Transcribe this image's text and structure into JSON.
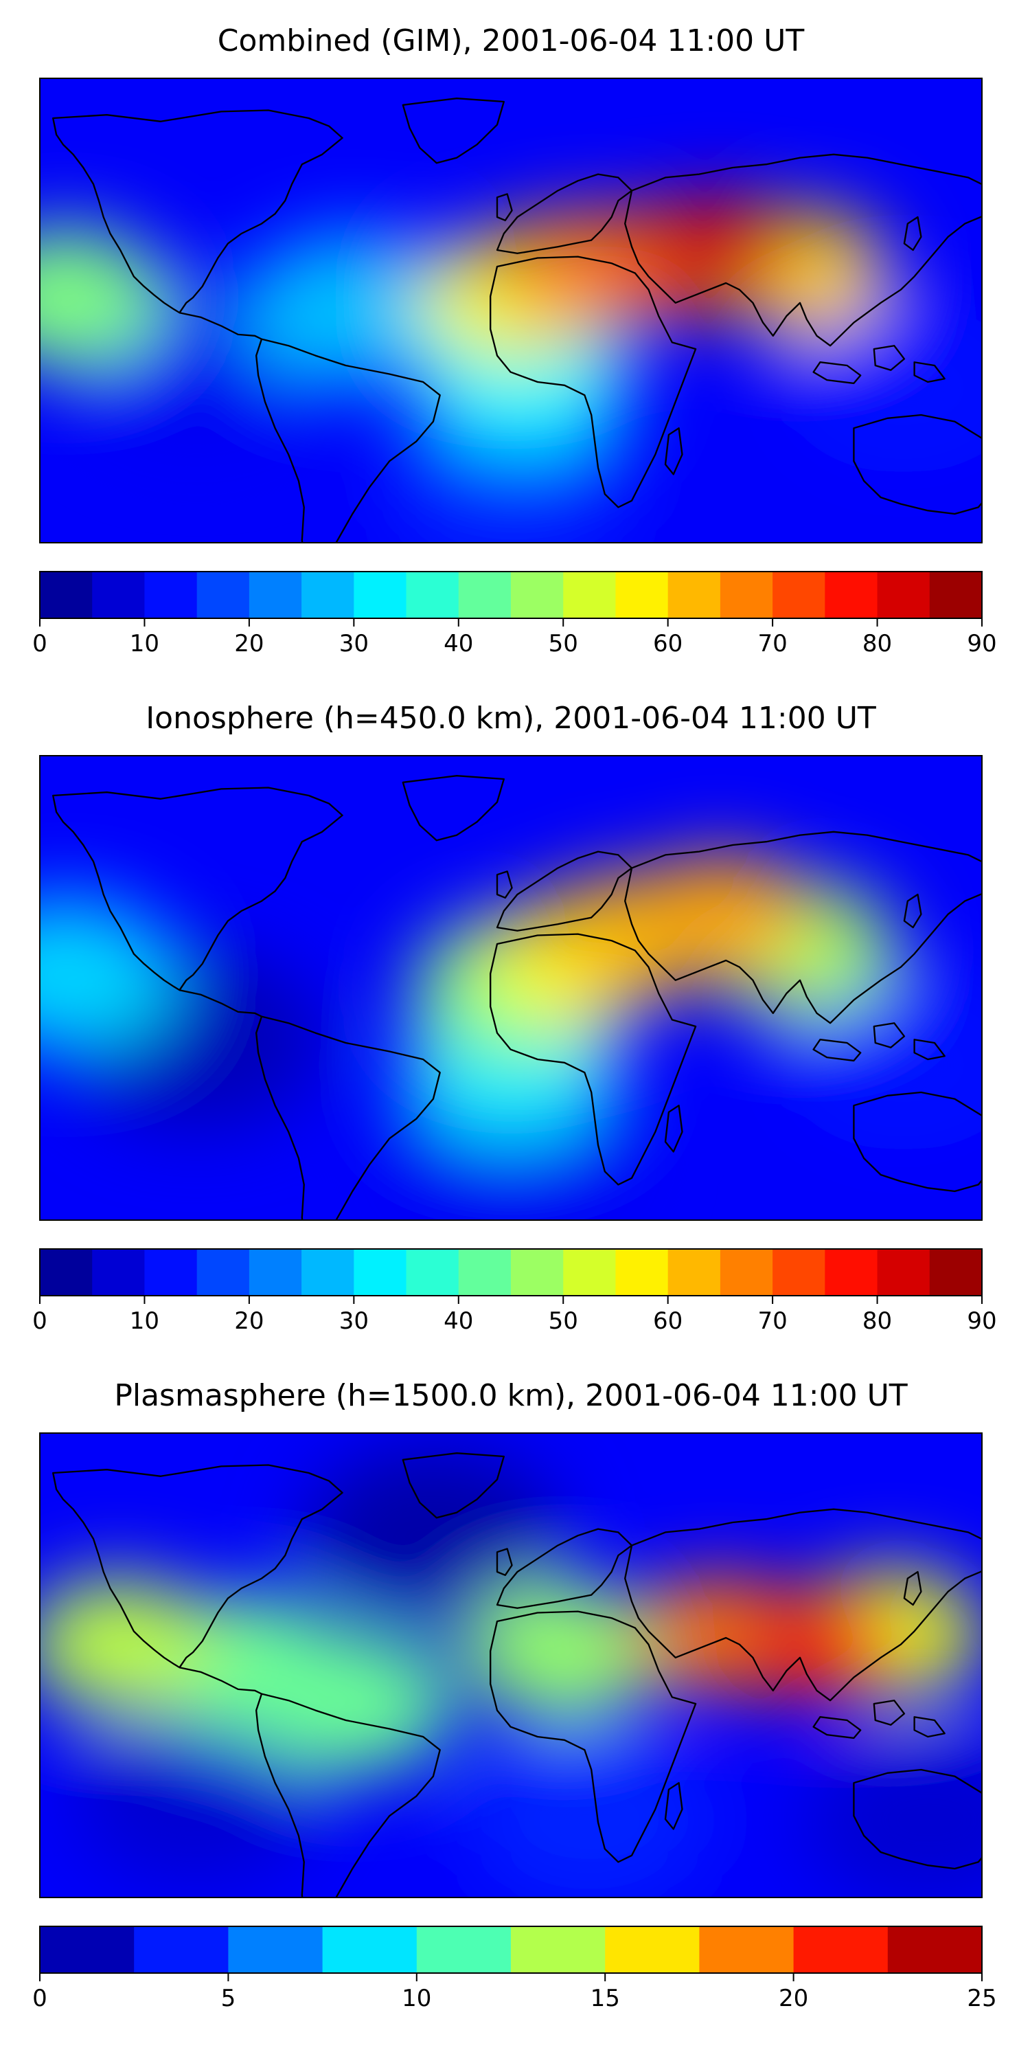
{
  "chart_data": [
    {
      "type": "heatmap",
      "title": "Combined (GIM), 2001-06-04 11:00 UT",
      "colorbar": {
        "levels": [
          0,
          5,
          10,
          15,
          20,
          25,
          30,
          35,
          40,
          45,
          50,
          55,
          60,
          65,
          70,
          75,
          80,
          85,
          90
        ],
        "ticks": [
          0,
          10,
          20,
          30,
          40,
          50,
          60,
          70,
          80,
          90
        ]
      },
      "features": [
        {
          "lon": 25,
          "lat": 15,
          "value": 66
        },
        {
          "lon": 80,
          "lat": 24,
          "value": 82
        },
        {
          "lon": 55,
          "lat": 18,
          "value": 70
        },
        {
          "lon": 110,
          "lat": 15,
          "value": 60
        },
        {
          "lon": 0,
          "lat": 5,
          "value": 55
        },
        {
          "lon": -170,
          "lat": 5,
          "value": 45
        },
        {
          "lon": 5,
          "lat": -25,
          "value": 33
        },
        {
          "lon": -60,
          "lat": 0,
          "value": 28
        },
        {
          "lon": -120,
          "lat": -20,
          "value": 10
        },
        {
          "lon": 150,
          "lat": -30,
          "value": 12
        },
        {
          "lon": 0,
          "lat": -65,
          "value": 15
        }
      ]
    },
    {
      "type": "heatmap",
      "title": "Ionosphere  (h=450.0 km), 2001-06-04 11:00 UT",
      "colorbar": {
        "levels": [
          0,
          5,
          10,
          15,
          20,
          25,
          30,
          35,
          40,
          45,
          50,
          55,
          60,
          65,
          70,
          75,
          80,
          85,
          90
        ],
        "ticks": [
          0,
          10,
          20,
          30,
          40,
          50,
          60,
          70,
          80,
          90
        ]
      },
      "features": [
        {
          "lon": 25,
          "lat": 10,
          "value": 56
        },
        {
          "lon": 45,
          "lat": 20,
          "value": 62
        },
        {
          "lon": 80,
          "lat": 28,
          "value": 64
        },
        {
          "lon": 110,
          "lat": 15,
          "value": 48
        },
        {
          "lon": 0,
          "lat": 0,
          "value": 45
        },
        {
          "lon": -170,
          "lat": 5,
          "value": 30
        },
        {
          "lon": 0,
          "lat": -30,
          "value": 32
        },
        {
          "lon": -120,
          "lat": -20,
          "value": 5
        },
        {
          "lon": 150,
          "lat": -30,
          "value": 12
        },
        {
          "lon": 0,
          "lat": -65,
          "value": 10
        }
      ]
    },
    {
      "type": "heatmap",
      "title": "Plasmasphere (h=1500.0 km), 2001-06-04 11:00 UT",
      "colorbar": {
        "levels": [
          0,
          2.5,
          5,
          7.5,
          10,
          12.5,
          15,
          17.5,
          20,
          22.5,
          25
        ],
        "ticks": [
          0,
          5,
          10,
          15,
          20,
          25
        ]
      },
      "features": [
        {
          "lon": 80,
          "lat": 12,
          "value": 19
        },
        {
          "lon": 118,
          "lat": 8,
          "value": 21
        },
        {
          "lon": 145,
          "lat": 12,
          "value": 15
        },
        {
          "lon": -150,
          "lat": 8,
          "value": 14
        },
        {
          "lon": -100,
          "lat": 0,
          "value": 12
        },
        {
          "lon": -60,
          "lat": -15,
          "value": 12
        },
        {
          "lon": 20,
          "lat": 5,
          "value": 13
        },
        {
          "lon": -30,
          "lat": 50,
          "value": 1
        },
        {
          "lon": 30,
          "lat": -60,
          "value": 4
        },
        {
          "lon": 160,
          "lat": -60,
          "value": 2
        },
        {
          "lon": -120,
          "lat": -50,
          "value": 2
        }
      ]
    }
  ]
}
